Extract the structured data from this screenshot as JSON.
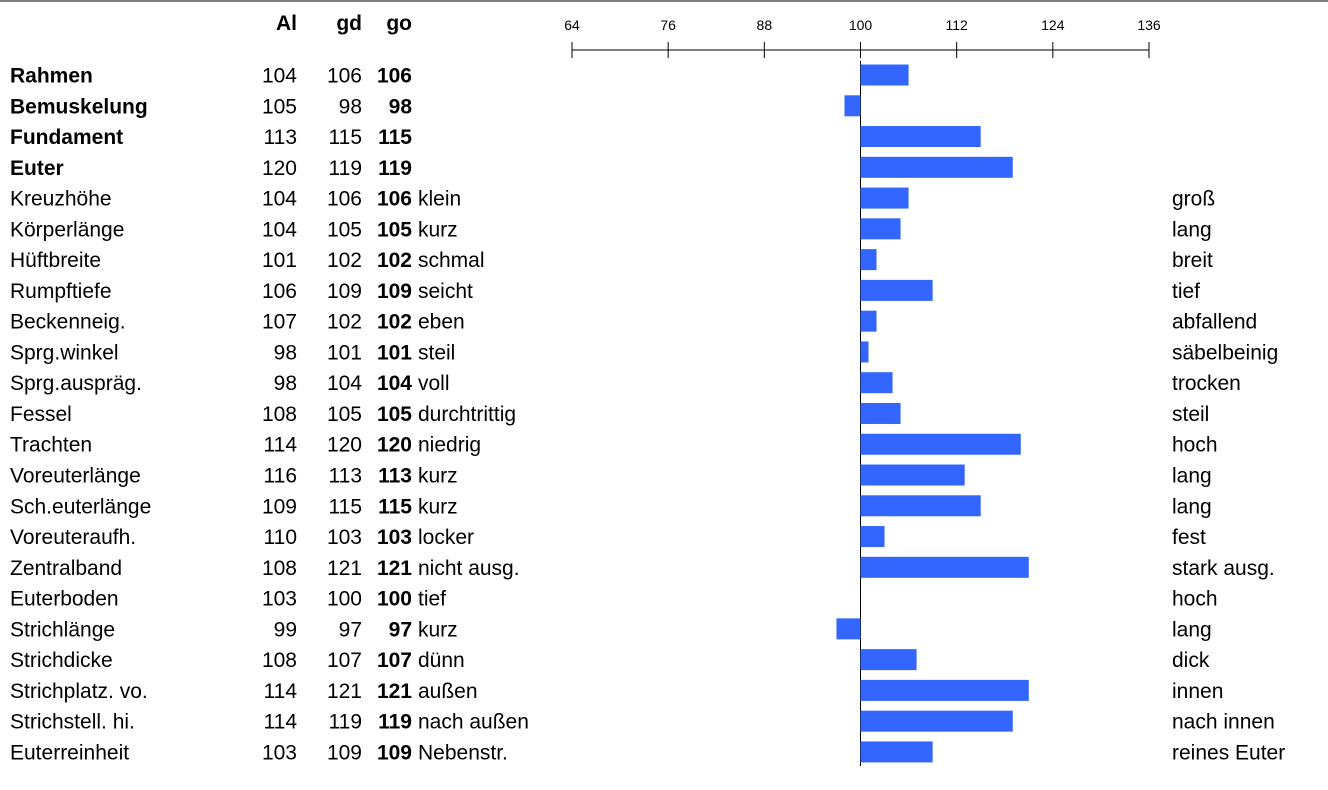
{
  "chart_data": {
    "type": "bar",
    "orientation": "horizontal",
    "title": "",
    "columns": [
      "Al",
      "gd",
      "go"
    ],
    "xlim": [
      64,
      136
    ],
    "baseline": 100,
    "ticks": [
      64,
      76,
      88,
      100,
      112,
      124,
      136
    ],
    "bar_color": "#3366ff",
    "grid": false,
    "rows": [
      {
        "label": "Rahmen",
        "bold": true,
        "al": "104",
        "gd": "106",
        "go": "106",
        "left": "",
        "right": "",
        "value": 106
      },
      {
        "label": "Bemuskelung",
        "bold": true,
        "al": "105",
        "gd": "98",
        "go": "98",
        "left": "",
        "right": "",
        "value": 98
      },
      {
        "label": "Fundament",
        "bold": true,
        "al": "113",
        "gd": "115",
        "go": "115",
        "left": "",
        "right": "",
        "value": 115
      },
      {
        "label": "Euter",
        "bold": true,
        "al": "120",
        "gd": "119",
        "go": "119",
        "left": "",
        "right": "",
        "value": 119
      },
      {
        "label": "Kreuzhöhe",
        "bold": false,
        "al": "104",
        "gd": "106",
        "go": "106",
        "left": "klein",
        "right": "groß",
        "value": 106
      },
      {
        "label": "Körperlänge",
        "bold": false,
        "al": "104",
        "gd": "105",
        "go": "105",
        "left": "kurz",
        "right": "lang",
        "value": 105
      },
      {
        "label": "Hüftbreite",
        "bold": false,
        "al": "101",
        "gd": "102",
        "go": "102",
        "left": "schmal",
        "right": "breit",
        "value": 102
      },
      {
        "label": "Rumpftiefe",
        "bold": false,
        "al": "106",
        "gd": "109",
        "go": "109",
        "left": "seicht",
        "right": "tief",
        "value": 109
      },
      {
        "label": "Beckenneig.",
        "bold": false,
        "al": "107",
        "gd": "102",
        "go": "102",
        "left": "eben",
        "right": "abfallend",
        "value": 102
      },
      {
        "label": "Sprg.winkel",
        "bold": false,
        "al": "98",
        "gd": "101",
        "go": "101",
        "left": "steil",
        "right": "säbelbeinig",
        "value": 101
      },
      {
        "label": "Sprg.auspräg.",
        "bold": false,
        "al": "98",
        "gd": "104",
        "go": "104",
        "left": "voll",
        "right": "trocken",
        "value": 104
      },
      {
        "label": "Fessel",
        "bold": false,
        "al": "108",
        "gd": "105",
        "go": "105",
        "left": "durchtrittig",
        "right": "steil",
        "value": 105
      },
      {
        "label": "Trachten",
        "bold": false,
        "al": "114",
        "gd": "120",
        "go": "120",
        "left": "niedrig",
        "right": "hoch",
        "value": 120
      },
      {
        "label": "Voreuterlänge",
        "bold": false,
        "al": "116",
        "gd": "113",
        "go": "113",
        "left": "kurz",
        "right": "lang",
        "value": 113
      },
      {
        "label": "Sch.euterlänge",
        "bold": false,
        "al": "109",
        "gd": "115",
        "go": "115",
        "left": "kurz",
        "right": "lang",
        "value": 115
      },
      {
        "label": "Voreuteraufh.",
        "bold": false,
        "al": "110",
        "gd": "103",
        "go": "103",
        "left": "locker",
        "right": "fest",
        "value": 103
      },
      {
        "label": "Zentralband",
        "bold": false,
        "al": "108",
        "gd": "121",
        "go": "121",
        "left": "nicht ausg.",
        "right": "stark ausg.",
        "value": 121
      },
      {
        "label": "Euterboden",
        "bold": false,
        "al": "103",
        "gd": "100",
        "go": "100",
        "left": "tief",
        "right": "hoch",
        "value": 100
      },
      {
        "label": "Strichlänge",
        "bold": false,
        "al": "99",
        "gd": "97",
        "go": "97",
        "left": "kurz",
        "right": "lang",
        "value": 97
      },
      {
        "label": "Strichdicke",
        "bold": false,
        "al": "108",
        "gd": "107",
        "go": "107",
        "left": "dünn",
        "right": "dick",
        "value": 107
      },
      {
        "label": "Strichplatz. vo.",
        "bold": false,
        "al": "114",
        "gd": "121",
        "go": "121",
        "left": "außen",
        "right": "innen",
        "value": 121
      },
      {
        "label": "Strichstell. hi.",
        "bold": false,
        "al": "114",
        "gd": "119",
        "go": "119",
        "left": "nach außen",
        "right": "nach innen",
        "value": 119
      },
      {
        "label": "Euterreinheit",
        "bold": false,
        "al": "103",
        "gd": "109",
        "go": "109",
        "left": "Nebenstr.",
        "right": "reines Euter",
        "value": 109
      }
    ]
  }
}
